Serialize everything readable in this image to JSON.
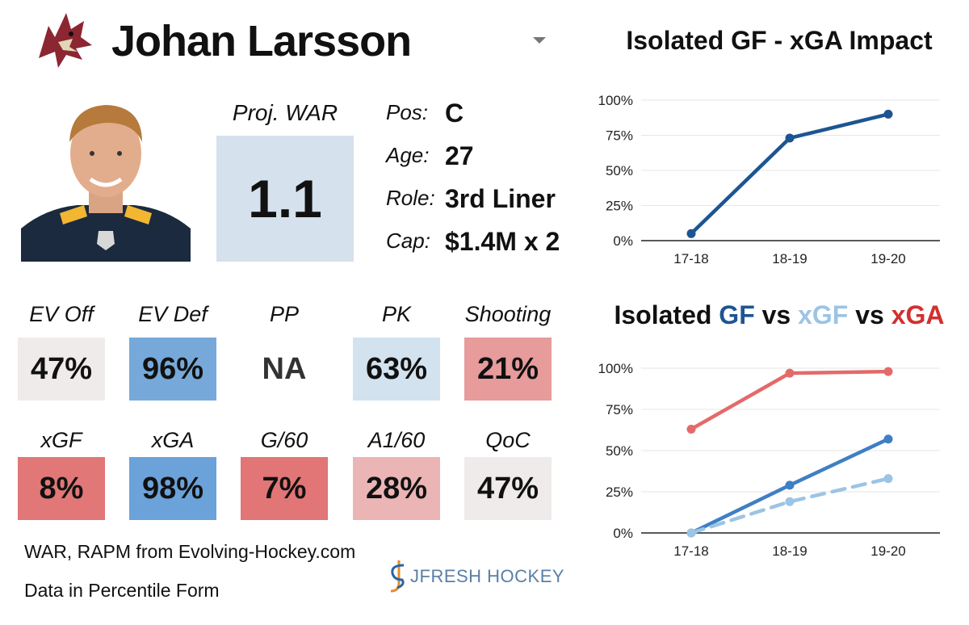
{
  "player": {
    "name": "Johan Larsson",
    "proj_war_label": "Proj. WAR",
    "proj_war": "1.1",
    "info": [
      {
        "label": "Pos:",
        "value": "C"
      },
      {
        "label": "Age:",
        "value": "27"
      },
      {
        "label": "Role:",
        "value": "3rd Liner"
      },
      {
        "label": "Cap:",
        "value": "$1.4M x 2"
      }
    ]
  },
  "stats_row1": [
    {
      "label": "EV Off",
      "value": "47%",
      "color": "#f0ebeb"
    },
    {
      "label": "EV Def",
      "value": "96%",
      "color": "#76a9da"
    },
    {
      "label": "PP",
      "value": "NA",
      "color": "#ffffff"
    },
    {
      "label": "PK",
      "value": "63%",
      "color": "#d2e2ef"
    },
    {
      "label": "Shooting",
      "value": "21%",
      "color": "#e79b9b"
    }
  ],
  "stats_row2": [
    {
      "label": "xGF",
      "value": "8%",
      "color": "#e27777"
    },
    {
      "label": "xGA",
      "value": "98%",
      "color": "#6ba2d9"
    },
    {
      "label": "G/60",
      "value": "7%",
      "color": "#e27575"
    },
    {
      "label": "A1/60",
      "value": "28%",
      "color": "#ebb5b5"
    },
    {
      "label": "QoC",
      "value": "47%",
      "color": "#f0ebeb"
    }
  ],
  "footer": {
    "source": "WAR, RAPM from  Evolving-Hockey.com",
    "note": "Data in Percentile Form",
    "brand": "JFRESH HOCKEY"
  },
  "colors": {
    "gf": "#1d5592",
    "xgf": "#9cc4e4",
    "xga": "#d32f2f",
    "line_gf": "#3f7fc4",
    "line_xga": "#e46a6a"
  },
  "chart_data": [
    {
      "type": "line",
      "title": "Isolated GF - xGA Impact",
      "categories": [
        "17-18",
        "18-19",
        "19-20"
      ],
      "series": [
        {
          "name": "GF - xGA",
          "values": [
            5,
            73,
            90
          ],
          "color": "#1d5592",
          "dashed": false
        }
      ],
      "ylim": [
        0,
        100
      ],
      "yticks": [
        "0%",
        "25%",
        "50%",
        "75%",
        "100%"
      ],
      "grid": true
    },
    {
      "type": "line",
      "title_parts": {
        "prefix": "Isolated ",
        "gf": "GF",
        "vs1": " vs ",
        "xgf": "xGF",
        "vs2": " vs ",
        "xga": "xGA"
      },
      "categories": [
        "17-18",
        "18-19",
        "19-20"
      ],
      "series": [
        {
          "name": "xGA",
          "values": [
            63,
            97,
            98
          ],
          "color": "#e46a6a",
          "dashed": false
        },
        {
          "name": "GF",
          "values": [
            0,
            29,
            57
          ],
          "color": "#3f7fc4",
          "dashed": false
        },
        {
          "name": "xGF",
          "values": [
            0,
            19,
            33
          ],
          "color": "#9cc4e4",
          "dashed": true
        }
      ],
      "ylim": [
        0,
        100
      ],
      "yticks": [
        "0%",
        "25%",
        "50%",
        "75%",
        "100%"
      ],
      "grid": true
    }
  ]
}
